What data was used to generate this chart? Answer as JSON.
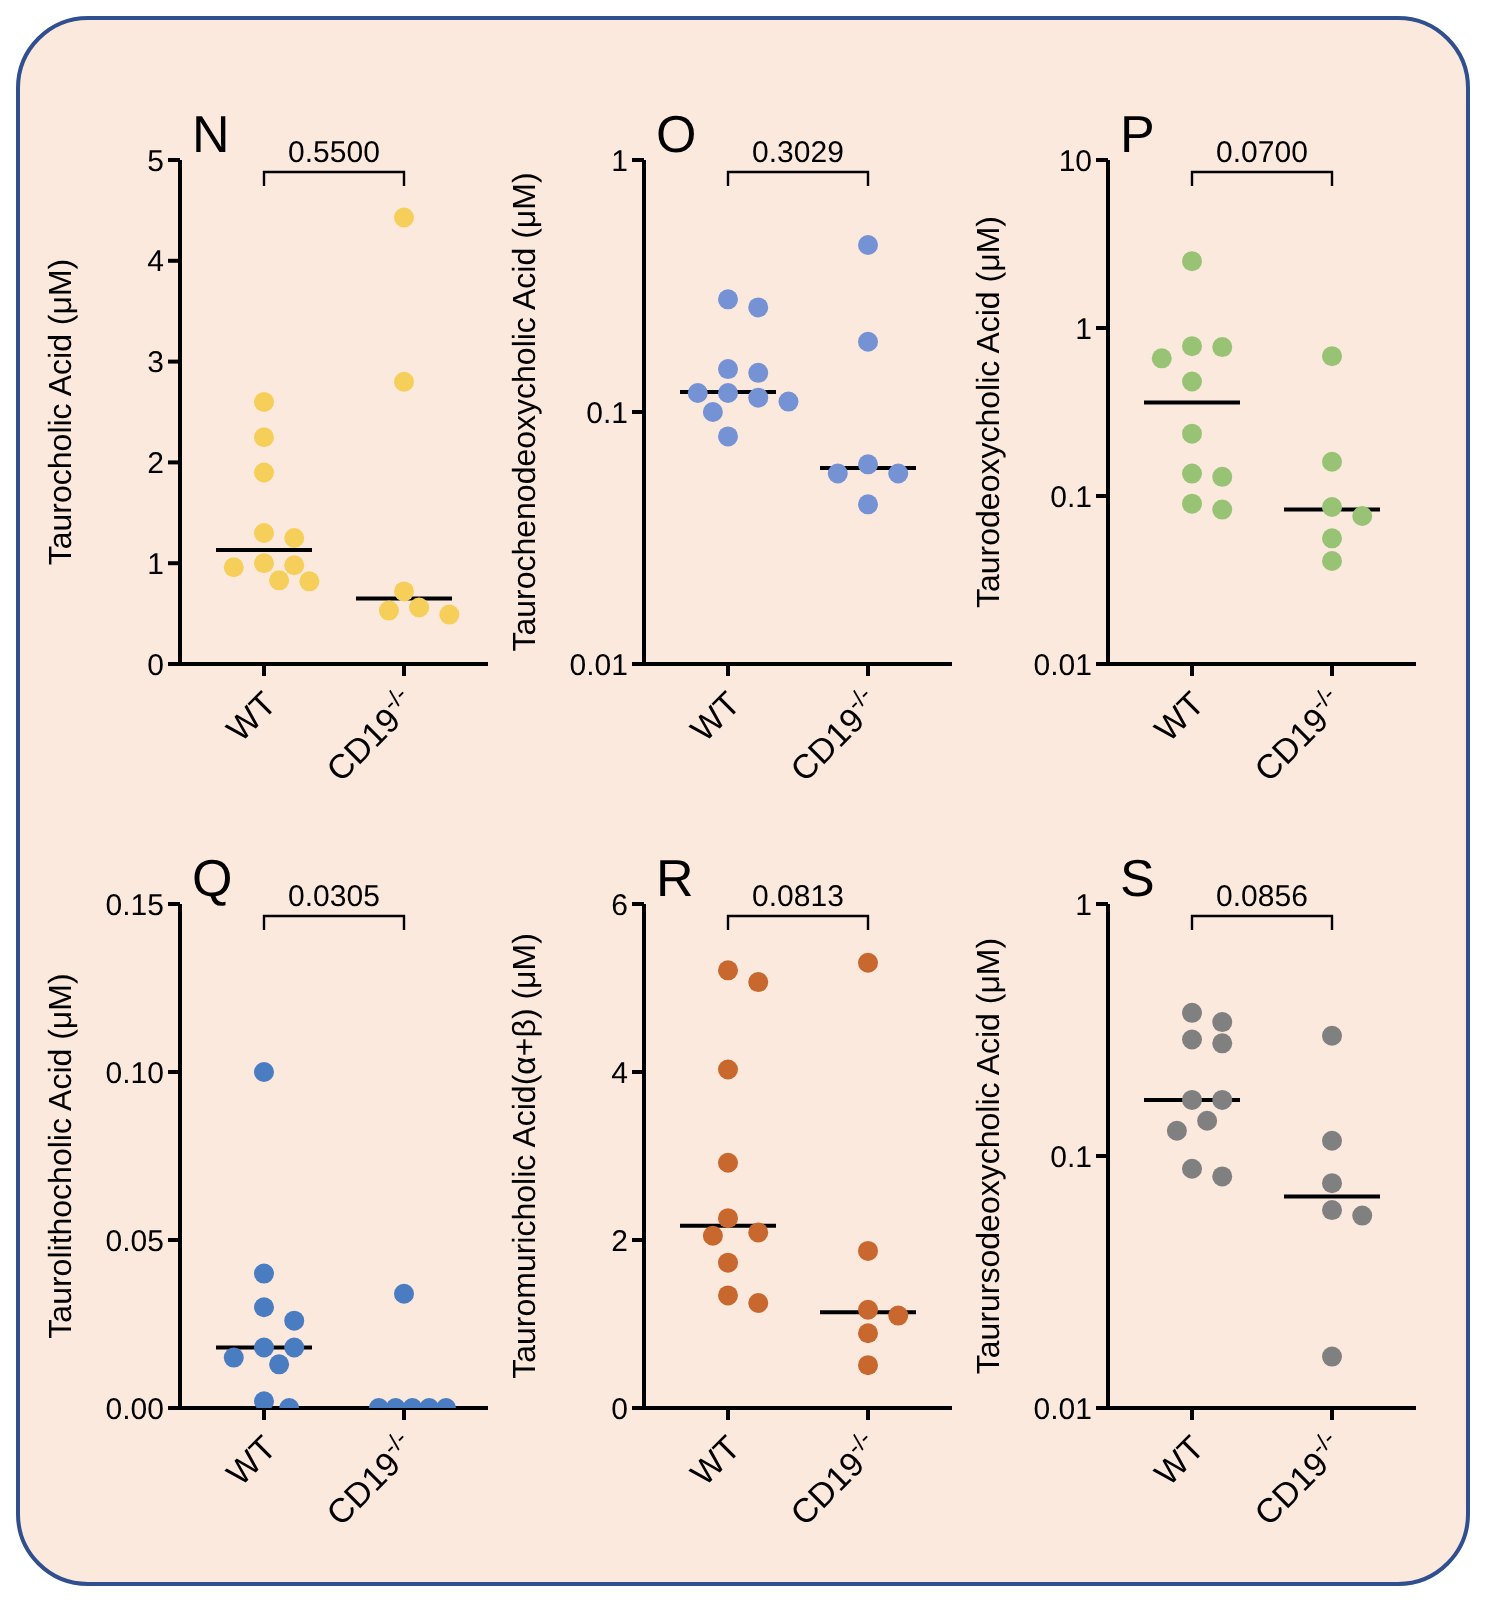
{
  "chart_data": [
    {
      "type": "scatter",
      "title": "N",
      "ylabel": "Taurocholic Acid (μM)",
      "categories": [
        "WT",
        "CD19$^{-/-}$"
      ],
      "ylim": [
        0,
        5
      ],
      "yticks": [
        0,
        1,
        2,
        3,
        4,
        5
      ],
      "marker": "circle",
      "annotations": [
        "0.5500"
      ],
      "series": [
        {
          "color": "#f5cf5a",
          "x": [
            "WT",
            "WT",
            "WT",
            "WT",
            "WT",
            "WT",
            "WT",
            "WT",
            "WT",
            "WT",
            "CD19$^{-/-}$",
            "CD19$^{-/-}$",
            "CD19$^{-/-}$",
            "CD19$^{-/-}$",
            "CD19$^{-/-}$",
            "CD19$^{-/-}$"
          ],
          "values": [
            2.6,
            2.25,
            1.9,
            1.3,
            1.25,
            1.0,
            0.98,
            0.96,
            0.83,
            0.82,
            4.43,
            2.8,
            0.72,
            0.56,
            0.53,
            0.49
          ]
        },
        {
          "type": "box",
          "color": "#000000",
          "boxes": [
            {
              "low": 1.13,
              "q1": 1.13,
              "median": 1.13,
              "q3": 1.13,
              "high": 1.13
            },
            {
              "low": 0.65,
              "q1": 0.65,
              "median": 0.65,
              "q3": 0.65,
              "high": 0.65
            }
          ]
        }
      ]
    },
    {
      "type": "scatter",
      "title": "O",
      "ylabel": "Taurochenodeoxycholic Acid (μM)",
      "categories": [
        "WT",
        "CD19$^{-/-}$"
      ],
      "log": true,
      "ylim": [
        0.01,
        1
      ],
      "yticks": [
        0.01,
        0.1,
        1
      ],
      "marker": "circle",
      "annotations": [
        "0.3029"
      ],
      "series": [
        {
          "color": "#7492d4",
          "x": [
            "WT",
            "WT",
            "WT",
            "WT",
            "WT",
            "WT",
            "WT",
            "WT",
            "WT",
            "WT",
            "CD19$^{-/-}$",
            "CD19$^{-/-}$",
            "CD19$^{-/-}$",
            "CD19$^{-/-}$",
            "CD19$^{-/-}$",
            "CD19$^{-/-}$"
          ],
          "values": [
            0.28,
            0.26,
            0.148,
            0.143,
            0.119,
            0.119,
            0.114,
            0.11,
            0.1,
            0.08,
            0.46,
            0.19,
            0.062,
            0.057,
            0.057,
            0.043
          ]
        },
        {
          "type": "box",
          "color": "#000000",
          "boxes": [
            {
              "low": 0.12,
              "q1": 0.12,
              "median": 0.12,
              "q3": 0.12,
              "high": 0.12
            },
            {
              "low": 0.06,
              "q1": 0.06,
              "median": 0.06,
              "q3": 0.06,
              "high": 0.06
            }
          ]
        }
      ]
    },
    {
      "type": "scatter",
      "title": "P",
      "ylabel": "Taurodeoxycholic Acid (μM)",
      "categories": [
        "WT",
        "CD19$^{-/-}$"
      ],
      "log": true,
      "ylim": [
        0.01,
        10
      ],
      "yticks": [
        0.01,
        0.1,
        1,
        10
      ],
      "marker": "circle",
      "annotations": [
        "0.0700"
      ],
      "series": [
        {
          "color": "#98c374",
          "x": [
            "WT",
            "WT",
            "WT",
            "WT",
            "WT",
            "WT",
            "WT",
            "WT",
            "WT",
            "WT",
            "CD19$^{-/-}$",
            "CD19$^{-/-}$",
            "CD19$^{-/-}$",
            "CD19$^{-/-}$",
            "CD19$^{-/-}$",
            "CD19$^{-/-}$"
          ],
          "values": [
            2.5,
            0.78,
            0.77,
            0.66,
            0.48,
            0.235,
            0.136,
            0.13,
            0.09,
            0.083,
            0.68,
            0.16,
            0.086,
            0.076,
            0.056,
            0.041
          ]
        },
        {
          "type": "box",
          "color": "#000000",
          "boxes": [
            {
              "low": 0.36,
              "q1": 0.36,
              "median": 0.36,
              "q3": 0.36,
              "high": 0.36
            },
            {
              "low": 0.083,
              "q1": 0.083,
              "median": 0.083,
              "q3": 0.083,
              "high": 0.083
            }
          ]
        }
      ]
    },
    {
      "type": "scatter",
      "title": "Q",
      "ylabel": "Taurolithocholic Acid (μM)",
      "categories": [
        "WT",
        "CD19$^{-/-}$"
      ],
      "ylim": [
        0,
        0.15
      ],
      "yticks": [
        {
          "value": 0,
          "label": "0.00"
        },
        {
          "value": 0.05,
          "label": "0.05"
        },
        {
          "value": 0.1,
          "label": "0.10"
        },
        {
          "value": 0.15,
          "label": "0.15"
        }
      ],
      "marker": "circle",
      "annotations": [
        "0.0305"
      ],
      "series": [
        {
          "color": "#4a7cc2",
          "x": [
            "WT",
            "WT",
            "WT",
            "WT",
            "WT",
            "WT",
            "WT",
            "WT",
            "WT",
            "WT",
            "CD19$^{-/-}$",
            "CD19$^{-/-}$",
            "CD19$^{-/-}$",
            "CD19$^{-/-}$",
            "CD19$^{-/-}$",
            "CD19$^{-/-}$"
          ],
          "values": [
            0.1,
            0.04,
            0.03,
            0.026,
            0.018,
            0.018,
            0.015,
            0.013,
            0.002,
            0,
            0.034,
            0,
            0,
            0,
            0,
            0
          ]
        },
        {
          "type": "box",
          "color": "#000000",
          "boxes": [
            {
              "low": 0.018,
              "q1": 0.018,
              "median": 0.018,
              "q3": 0.018,
              "high": 0.018
            },
            {
              "low": 0,
              "q1": 0,
              "median": 0,
              "q3": 0,
              "high": 0
            }
          ]
        }
      ]
    },
    {
      "type": "scatter",
      "title": "R",
      "ylabel": "Tauromuricholic Acid(α+β)  (μM)",
      "categories": [
        "WT",
        "CD19$^{-/-}$"
      ],
      "ylim": [
        0,
        6
      ],
      "yticks": [
        0,
        2,
        4,
        6
      ],
      "marker": "circle",
      "annotations": [
        "0.0813"
      ],
      "series": [
        {
          "color": "#c8682e",
          "x": [
            "WT",
            "WT",
            "WT",
            "WT",
            "WT",
            "WT",
            "WT",
            "WT",
            "WT",
            "WT",
            "CD19$^{-/-}$",
            "CD19$^{-/-}$",
            "CD19$^{-/-}$",
            "CD19$^{-/-}$",
            "CD19$^{-/-}$",
            "CD19$^{-/-}$"
          ],
          "values": [
            5.21,
            5.07,
            4.03,
            2.92,
            2.26,
            2.09,
            2.05,
            1.73,
            1.34,
            1.25,
            5.3,
            1.87,
            1.17,
            1.1,
            0.89,
            0.51
          ]
        },
        {
          "type": "box",
          "color": "#000000",
          "boxes": [
            {
              "low": 2.17,
              "q1": 2.17,
              "median": 2.17,
              "q3": 2.17,
              "high": 2.17
            },
            {
              "low": 1.14,
              "q1": 1.14,
              "median": 1.14,
              "q3": 1.14,
              "high": 1.14
            }
          ]
        }
      ]
    },
    {
      "type": "scatter",
      "title": "S",
      "ylabel": "Taurursodeoxycholic Acid (μM)",
      "categories": [
        "WT",
        "CD19$^{-/-}$"
      ],
      "log": true,
      "ylim": [
        0.01,
        1
      ],
      "yticks": [
        0.01,
        0.1,
        1
      ],
      "marker": "circle",
      "annotations": [
        "0.0856"
      ],
      "series": [
        {
          "color": "#808080",
          "x": [
            "WT",
            "WT",
            "WT",
            "WT",
            "WT",
            "WT",
            "WT",
            "WT",
            "WT",
            "WT",
            "CD19$^{-/-}$",
            "CD19$^{-/-}$",
            "CD19$^{-/-}$",
            "CD19$^{-/-}$",
            "CD19$^{-/-}$",
            "CD19$^{-/-}$"
          ],
          "values": [
            0.37,
            0.34,
            0.29,
            0.28,
            0.167,
            0.167,
            0.138,
            0.126,
            0.089,
            0.083,
            0.3,
            0.115,
            0.078,
            0.061,
            0.058,
            0.016
          ]
        },
        {
          "type": "box",
          "color": "#000000",
          "boxes": [
            {
              "low": 0.167,
              "q1": 0.167,
              "median": 0.167,
              "q3": 0.167,
              "high": 0.167
            },
            {
              "low": 0.069,
              "q1": 0.069,
              "median": 0.069,
              "q3": 0.069,
              "high": 0.069
            }
          ]
        }
      ]
    }
  ]
}
